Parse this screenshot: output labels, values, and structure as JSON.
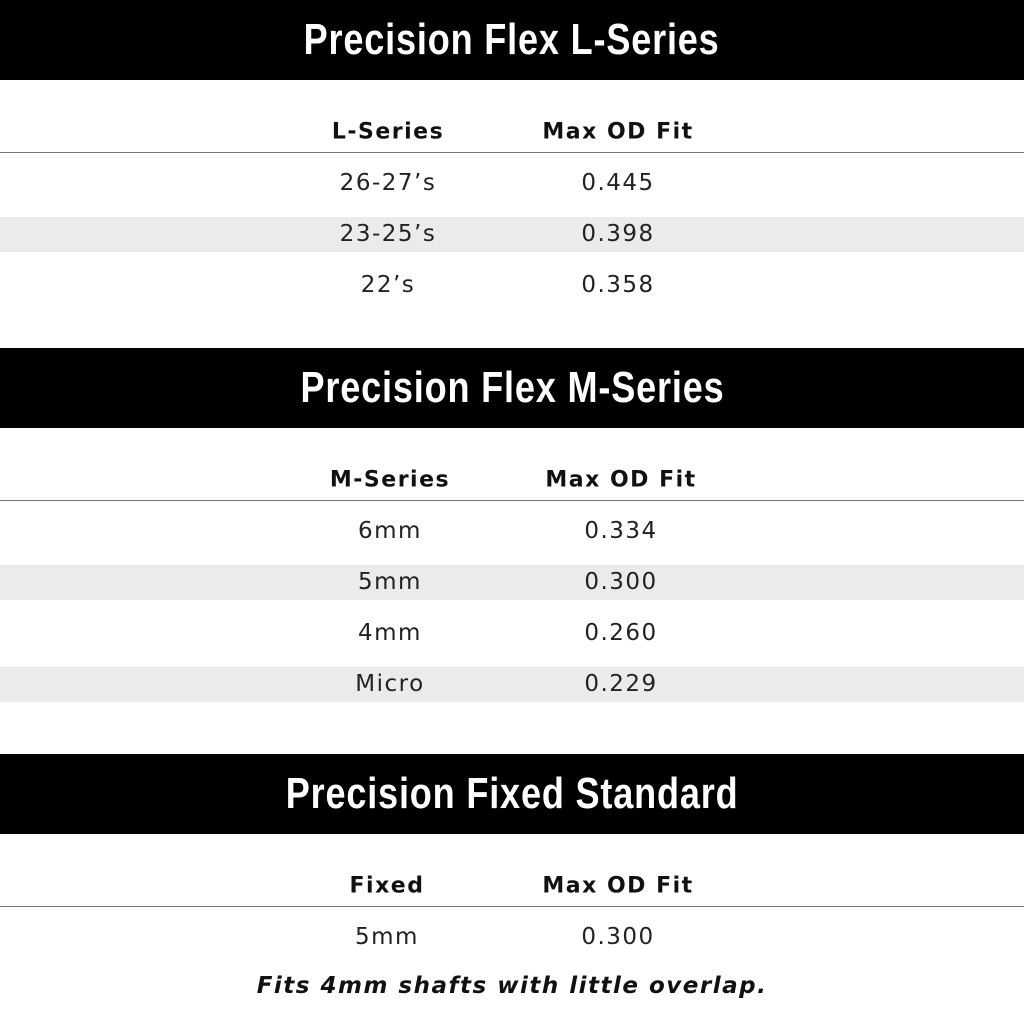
{
  "sections": [
    {
      "title": "Precision Flex L-Series",
      "headers": [
        "L-Series",
        "Max OD Fit"
      ],
      "rows": [
        [
          "26-27’s",
          "0.445"
        ],
        [
          "23-25’s",
          "0.398"
        ],
        [
          "22’s",
          "0.358"
        ]
      ]
    },
    {
      "title": "Precision Flex M-Series",
      "headers": [
        "M-Series",
        "Max OD Fit"
      ],
      "rows": [
        [
          "6mm",
          "0.334"
        ],
        [
          "5mm",
          "0.300"
        ],
        [
          "4mm",
          "0.260"
        ],
        [
          "Micro",
          "0.229"
        ]
      ]
    },
    {
      "title": "Precision Fixed Standard",
      "headers": [
        "Fixed",
        "Max OD Fit"
      ],
      "rows": [
        [
          "5mm",
          "0.300"
        ]
      ]
    }
  ],
  "note": "Fits 4mm shafts with little overlap.",
  "colors": {
    "banner": "#000000",
    "stripe": "#ebebeb",
    "banner_text": "#ffffff"
  }
}
